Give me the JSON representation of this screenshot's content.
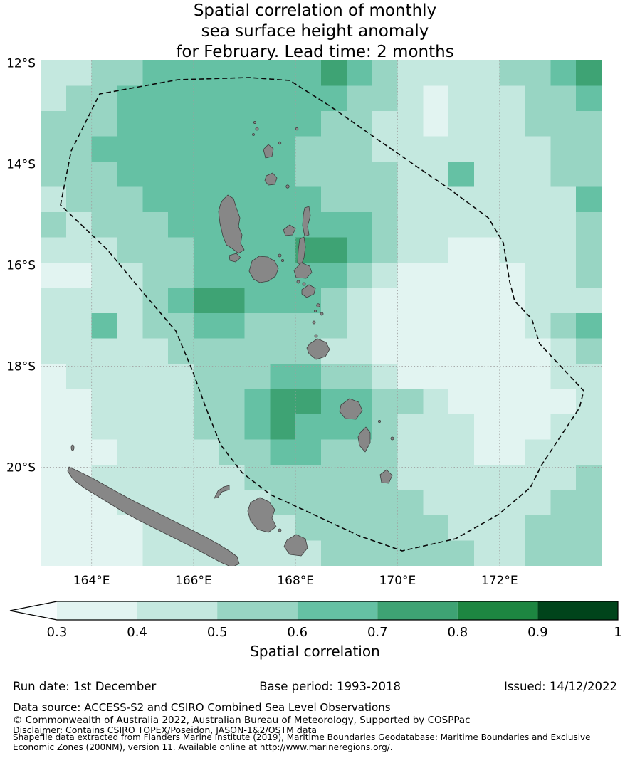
{
  "title": {
    "lines": [
      "Spatial correlation of monthly",
      "sea surface height anomaly",
      "for February. Lead time: 2 months"
    ]
  },
  "colorbar": {
    "label": "Spatial correlation",
    "ticks": [
      "0.3",
      "0.4",
      "0.5",
      "0.6",
      "0.7",
      "0.8",
      "0.9",
      "1"
    ]
  },
  "footer": {
    "run_date": "Run date: 1st December",
    "base_period": "Base period: 1993-2018",
    "issued": "Issued: 14/12/2022",
    "data_source": "Data source: ACCESS-S2 and CSIRO Combined Sea Level Observations",
    "copyright": "© Commonwealth of Australia 2022, Australian Bureau of Meteorology, Supported by COSPPac",
    "disclaimer": "Disclaimer: Contains CSIRO TOPEX/Poseidon, JASON-1&2/OSTM data",
    "shapefile": "Shapefile data extracted from Flanders Marine Institute (2019), Maritime Boundaries Geodatabase: Maritime Boundaries and Exclusive Economic Zones (200NM), version 11. Available online at http://www.marineregions.org/."
  },
  "chart_data": {
    "type": "heatmap",
    "title": "Spatial correlation of monthly sea surface height anomaly for February. Lead time: 2 months",
    "lon_min": 163.0,
    "lon_max": 174.0,
    "lat_min": 11.95,
    "lat_max": 21.95,
    "cell_deg": 0.5,
    "x_tick_lons": [
      164,
      166,
      168,
      170,
      172
    ],
    "y_tick_lats": [
      12,
      14,
      16,
      18,
      20
    ],
    "x_tick_labels": [
      "164°E",
      "166°E",
      "168°E",
      "170°E",
      "172°E"
    ],
    "y_tick_labels": [
      "12°S",
      "14°S",
      "16°S",
      "18°S",
      "20°S"
    ],
    "colorbar": {
      "label": "Spatial correlation",
      "boundaries": [
        0.3,
        0.4,
        0.5,
        0.6,
        0.7,
        0.8,
        0.9,
        1.0
      ],
      "colors": [
        "#e2f4f1",
        "#c4e8df",
        "#98d5c3",
        "#65c1a4",
        "#3ea374",
        "#1d8641",
        "#00441b"
      ],
      "under_color": "#f7fcfd",
      "extend": "min"
    },
    "grid_description": "Correlation estimated per 0.5° cell from map colors; rows north to south from 11.95°S, columns west to east from 163.0°E",
    "grid": [
      [
        0.45,
        0.45,
        0.55,
        0.55,
        0.65,
        0.65,
        0.65,
        0.65,
        0.65,
        0.65,
        0.65,
        0.75,
        0.65,
        0.55,
        0.45,
        0.45,
        0.45,
        0.45,
        0.55,
        0.55,
        0.65,
        0.75
      ],
      [
        0.45,
        0.55,
        0.55,
        0.65,
        0.65,
        0.65,
        0.65,
        0.65,
        0.65,
        0.65,
        0.65,
        0.65,
        0.55,
        0.55,
        0.45,
        0.35,
        0.45,
        0.45,
        0.45,
        0.55,
        0.55,
        0.65
      ],
      [
        0.55,
        0.55,
        0.55,
        0.65,
        0.65,
        0.65,
        0.65,
        0.65,
        0.65,
        0.65,
        0.65,
        0.55,
        0.55,
        0.45,
        0.45,
        0.35,
        0.45,
        0.45,
        0.45,
        0.55,
        0.55,
        0.55
      ],
      [
        0.55,
        0.55,
        0.65,
        0.65,
        0.65,
        0.65,
        0.65,
        0.65,
        0.65,
        0.65,
        0.55,
        0.55,
        0.55,
        0.45,
        0.45,
        0.45,
        0.45,
        0.45,
        0.45,
        0.45,
        0.55,
        0.55
      ],
      [
        0.55,
        0.55,
        0.55,
        0.65,
        0.65,
        0.65,
        0.65,
        0.65,
        0.65,
        0.65,
        0.55,
        0.55,
        0.55,
        0.55,
        0.45,
        0.45,
        0.65,
        0.45,
        0.45,
        0.45,
        0.55,
        0.55
      ],
      [
        0.45,
        0.55,
        0.55,
        0.55,
        0.65,
        0.65,
        0.65,
        0.65,
        0.65,
        0.65,
        0.65,
        0.55,
        0.55,
        0.55,
        0.45,
        0.45,
        0.45,
        0.45,
        0.45,
        0.45,
        0.45,
        0.65
      ],
      [
        0.55,
        0.45,
        0.55,
        0.55,
        0.55,
        0.65,
        0.65,
        0.65,
        0.65,
        0.65,
        0.65,
        0.65,
        0.65,
        0.55,
        0.45,
        0.45,
        0.45,
        0.45,
        0.45,
        0.45,
        0.45,
        0.55
      ],
      [
        0.45,
        0.45,
        0.45,
        0.55,
        0.55,
        0.55,
        0.65,
        0.65,
        0.65,
        0.65,
        0.75,
        0.75,
        0.65,
        0.55,
        0.45,
        0.45,
        0.35,
        0.35,
        0.45,
        0.45,
        0.45,
        0.55
      ],
      [
        0.35,
        0.35,
        0.45,
        0.45,
        0.55,
        0.55,
        0.65,
        0.65,
        0.65,
        0.65,
        0.65,
        0.65,
        0.55,
        0.45,
        0.35,
        0.35,
        0.35,
        0.35,
        0.35,
        0.45,
        0.45,
        0.55
      ],
      [
        0.45,
        0.45,
        0.45,
        0.45,
        0.55,
        0.65,
        0.75,
        0.75,
        0.65,
        0.65,
        0.65,
        0.55,
        0.45,
        0.35,
        0.35,
        0.35,
        0.35,
        0.35,
        0.35,
        0.45,
        0.45,
        0.45
      ],
      [
        0.45,
        0.45,
        0.65,
        0.45,
        0.55,
        0.55,
        0.65,
        0.65,
        0.55,
        0.55,
        0.55,
        0.55,
        0.45,
        0.35,
        0.35,
        0.35,
        0.35,
        0.35,
        0.35,
        0.45,
        0.55,
        0.65
      ],
      [
        0.45,
        0.45,
        0.45,
        0.45,
        0.45,
        0.55,
        0.55,
        0.55,
        0.55,
        0.55,
        0.55,
        0.45,
        0.45,
        0.35,
        0.35,
        0.35,
        0.35,
        0.35,
        0.35,
        0.35,
        0.45,
        0.55
      ],
      [
        0.35,
        0.45,
        0.45,
        0.45,
        0.45,
        0.45,
        0.55,
        0.55,
        0.55,
        0.65,
        0.65,
        0.55,
        0.55,
        0.45,
        0.35,
        0.35,
        0.35,
        0.35,
        0.35,
        0.35,
        0.45,
        0.45
      ],
      [
        0.35,
        0.35,
        0.45,
        0.45,
        0.45,
        0.45,
        0.55,
        0.55,
        0.65,
        0.75,
        0.75,
        0.65,
        0.65,
        0.55,
        0.55,
        0.45,
        0.35,
        0.35,
        0.35,
        0.35,
        0.35,
        0.45
      ],
      [
        0.35,
        0.35,
        0.45,
        0.45,
        0.45,
        0.45,
        0.55,
        0.55,
        0.65,
        0.75,
        0.65,
        0.65,
        0.65,
        0.55,
        0.45,
        0.45,
        0.45,
        0.35,
        0.35,
        0.35,
        0.45,
        0.45
      ],
      [
        0.35,
        0.35,
        0.35,
        0.45,
        0.45,
        0.45,
        0.45,
        0.55,
        0.55,
        0.65,
        0.65,
        0.55,
        0.55,
        0.55,
        0.45,
        0.45,
        0.45,
        0.35,
        0.35,
        0.45,
        0.45,
        0.45
      ],
      [
        0.35,
        0.35,
        0.45,
        0.45,
        0.45,
        0.45,
        0.45,
        0.45,
        0.55,
        0.55,
        0.55,
        0.55,
        0.55,
        0.55,
        0.45,
        0.45,
        0.45,
        0.45,
        0.45,
        0.45,
        0.45,
        0.55
      ],
      [
        0.35,
        0.35,
        0.35,
        0.45,
        0.45,
        0.45,
        0.45,
        0.45,
        0.45,
        0.55,
        0.55,
        0.55,
        0.55,
        0.55,
        0.55,
        0.45,
        0.45,
        0.45,
        0.45,
        0.45,
        0.55,
        0.55
      ],
      [
        0.35,
        0.35,
        0.35,
        0.35,
        0.45,
        0.45,
        0.45,
        0.45,
        0.45,
        0.45,
        0.55,
        0.55,
        0.55,
        0.55,
        0.55,
        0.55,
        0.45,
        0.45,
        0.45,
        0.55,
        0.55,
        0.55
      ],
      [
        0.35,
        0.35,
        0.35,
        0.35,
        0.45,
        0.45,
        0.45,
        0.45,
        0.45,
        0.45,
        0.45,
        0.55,
        0.55,
        0.55,
        0.55,
        0.55,
        0.55,
        0.45,
        0.45,
        0.55,
        0.55,
        0.55
      ]
    ]
  }
}
